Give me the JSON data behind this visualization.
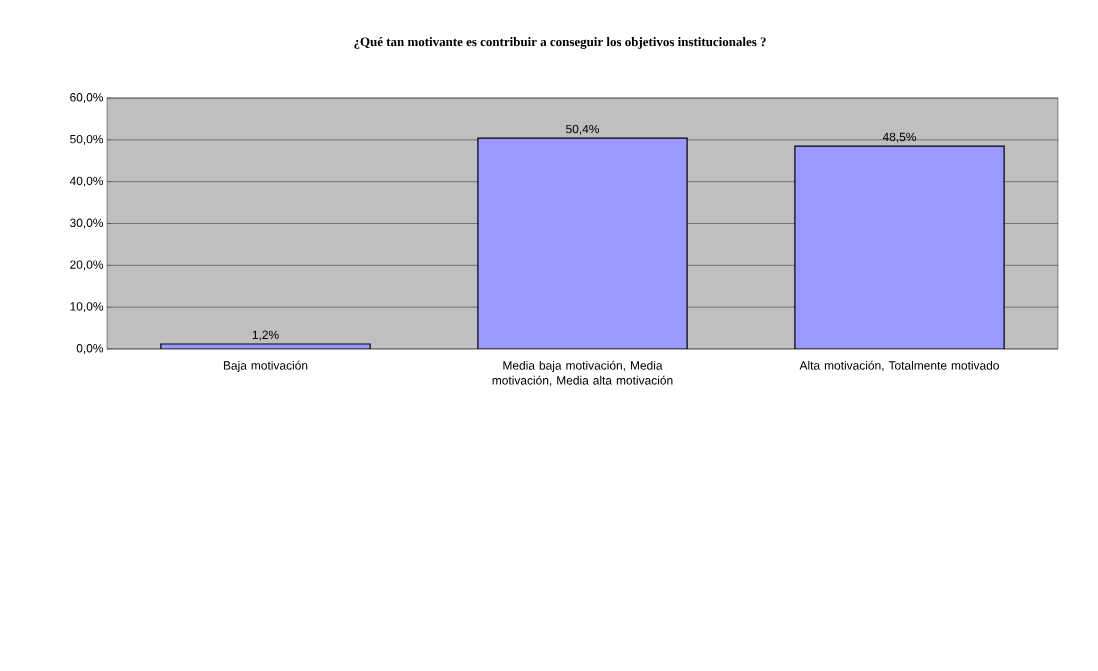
{
  "chart_data": {
    "type": "bar",
    "title": "¿Qué tan motivante es contribuir a conseguir los objetivos institucionales ?",
    "categories": [
      "Baja motivación",
      "Media baja motivación, Media motivación, Media alta motivación",
      "Alta motivación, Totalmente motivado"
    ],
    "values": [
      1.2,
      50.4,
      48.5
    ],
    "value_labels": [
      "1,2%",
      "50,4%",
      "48,5%"
    ],
    "color": "#9999ff",
    "ylim": [
      0,
      60
    ],
    "yticks": [
      {
        "value": 0,
        "label": "0,0%"
      },
      {
        "value": 10,
        "label": "10,0%"
      },
      {
        "value": 20,
        "label": "20,0%"
      },
      {
        "value": 30,
        "label": "30,0%"
      },
      {
        "value": 40,
        "label": "40,0%"
      },
      {
        "value": 50,
        "label": "50,0%"
      },
      {
        "value": 60,
        "label": "60,0%"
      }
    ],
    "grid": true
  }
}
